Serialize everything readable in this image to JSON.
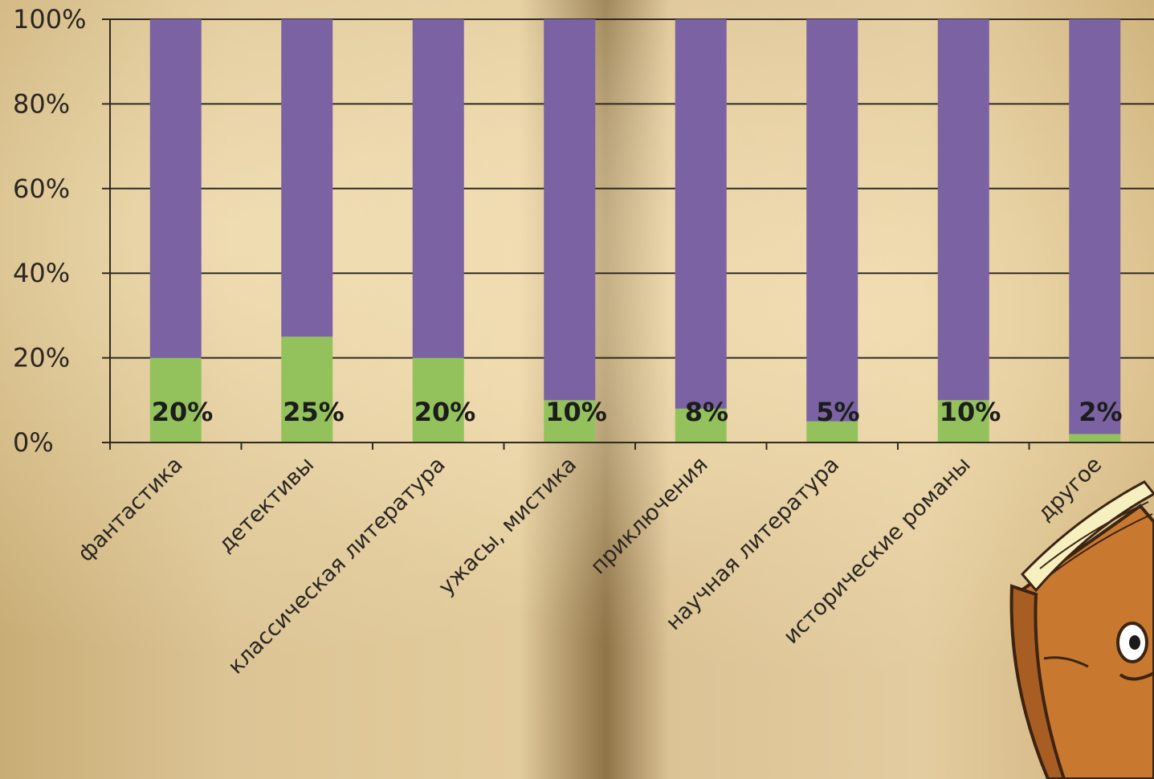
{
  "chart_data": {
    "type": "bar",
    "stacked_percent": true,
    "categories": [
      "фантастика",
      "детективы",
      "классическая литература",
      "ужасы, мистика",
      "приключения",
      "научная литература",
      "исторические романы",
      "другое"
    ],
    "series": [
      {
        "values": [
          20,
          25,
          20,
          10,
          8,
          5,
          10,
          2
        ],
        "color": "#93c25c"
      },
      {
        "values": [
          80,
          75,
          80,
          90,
          92,
          95,
          90,
          98
        ],
        "color": "#7b62a3"
      }
    ],
    "data_labels": [
      "20%",
      "25%",
      "20%",
      "10%",
      "8%",
      "5%",
      "10%",
      "2%"
    ],
    "yticks": [
      "0%",
      "20%",
      "40%",
      "60%",
      "80%",
      "100%"
    ],
    "ylim": [
      0,
      100
    ],
    "grid": true,
    "title": "",
    "xlabel": "",
    "ylabel": ""
  },
  "decoration": {
    "icon": "book-character-icon"
  }
}
